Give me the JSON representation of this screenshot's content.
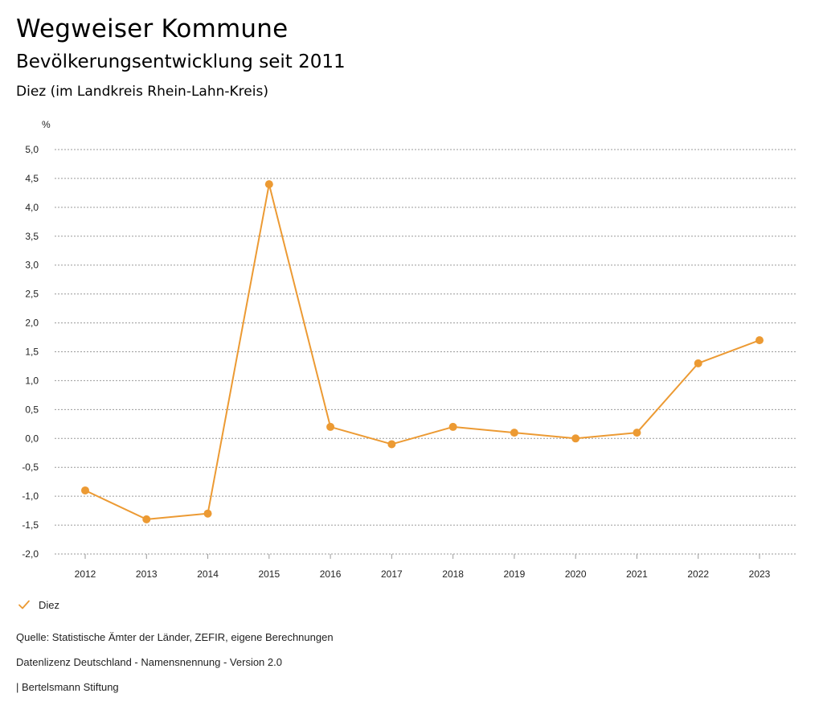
{
  "header": {
    "title": "Wegweiser Kommune",
    "subtitle": "Bevölkerungsentwicklung seit 2011",
    "region": "Diez (im Landkreis Rhein-Lahn-Kreis)"
  },
  "chart_data": {
    "type": "line",
    "title": "Bevölkerungsentwicklung seit 2011",
    "ylabel": "%",
    "xlabel": "",
    "ylim": [
      -2.0,
      5.0
    ],
    "ystep": 0.5,
    "categories": [
      "2012",
      "2013",
      "2014",
      "2015",
      "2016",
      "2017",
      "2018",
      "2019",
      "2020",
      "2021",
      "2022",
      "2023"
    ],
    "series": [
      {
        "name": "Diez",
        "color": "#ec9a33",
        "values": [
          -0.9,
          -1.4,
          -1.3,
          4.4,
          0.2,
          -0.1,
          0.2,
          0.1,
          0.0,
          0.1,
          1.3,
          1.7
        ]
      }
    ],
    "grid": true,
    "legend_position": "bottom-left"
  },
  "legend": {
    "label": "Diez",
    "color": "#ec9a33"
  },
  "footer": {
    "source": "Quelle: Statistische Ämter der Länder, ZEFIR, eigene Berechnungen",
    "license": "Datenlizenz Deutschland - Namensnennung - Version 2.0",
    "publisher": "| Bertelsmann Stiftung"
  }
}
